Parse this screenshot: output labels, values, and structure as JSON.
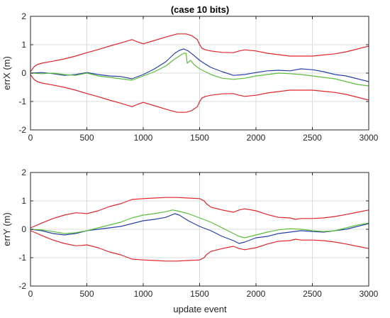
{
  "chart_data": [
    {
      "type": "line",
      "title": "(case 10 bits)",
      "xlabel": "",
      "ylabel": "errX (m)",
      "xlim": [
        0,
        3000
      ],
      "ylim": [
        -2,
        2
      ],
      "xticks": [
        0,
        500,
        1000,
        1500,
        2000,
        2500,
        3000
      ],
      "yticks": [
        -2,
        -1,
        0,
        1,
        2
      ],
      "grid": true,
      "series": [
        {
          "color": "#e0262b",
          "x": [
            0,
            30,
            60,
            100,
            200,
            300,
            400,
            500,
            600,
            700,
            800,
            900,
            950,
            1000,
            1100,
            1200,
            1300,
            1380,
            1430,
            1480,
            1500,
            1520,
            1550,
            1600,
            1700,
            1800,
            1850,
            1900,
            2000,
            2100,
            2200,
            2300,
            2400,
            2500,
            2600,
            2700,
            2800,
            2900,
            3000
          ],
          "values": [
            0.05,
            0.22,
            0.3,
            0.35,
            0.42,
            0.5,
            0.6,
            0.72,
            0.83,
            0.95,
            1.06,
            1.18,
            1.1,
            1.03,
            1.15,
            1.27,
            1.38,
            1.38,
            1.32,
            1.18,
            1.0,
            0.88,
            0.82,
            0.78,
            0.73,
            0.72,
            0.78,
            0.82,
            0.78,
            0.7,
            0.65,
            0.6,
            0.6,
            0.6,
            0.64,
            0.68,
            0.75,
            0.85,
            0.95
          ]
        },
        {
          "color": "#e0262b",
          "x": [
            0,
            30,
            60,
            100,
            200,
            300,
            400,
            500,
            600,
            700,
            800,
            900,
            950,
            1000,
            1100,
            1200,
            1300,
            1380,
            1430,
            1480,
            1500,
            1520,
            1550,
            1600,
            1700,
            1800,
            1850,
            1900,
            2000,
            2100,
            2200,
            2300,
            2400,
            2500,
            2600,
            2700,
            2800,
            2900,
            3000
          ],
          "values": [
            -0.05,
            -0.22,
            -0.3,
            -0.35,
            -0.42,
            -0.5,
            -0.6,
            -0.72,
            -0.83,
            -0.95,
            -1.06,
            -1.18,
            -1.1,
            -1.03,
            -1.15,
            -1.27,
            -1.38,
            -1.38,
            -1.32,
            -1.18,
            -1.0,
            -0.88,
            -0.82,
            -0.78,
            -0.73,
            -0.72,
            -0.78,
            -0.82,
            -0.78,
            -0.7,
            -0.65,
            -0.6,
            -0.6,
            -0.6,
            -0.64,
            -0.68,
            -0.75,
            -0.85,
            -0.95
          ]
        },
        {
          "color": "#2840a8",
          "x": [
            0,
            100,
            200,
            300,
            400,
            500,
            600,
            700,
            800,
            900,
            1000,
            1100,
            1200,
            1280,
            1320,
            1360,
            1400,
            1450,
            1500,
            1550,
            1600,
            1700,
            1800,
            1900,
            2000,
            2100,
            2200,
            2300,
            2400,
            2500,
            2600,
            2700,
            2800,
            2900,
            3000
          ],
          "values": [
            0.0,
            0.02,
            -0.02,
            -0.08,
            -0.05,
            0.02,
            -0.05,
            -0.1,
            -0.12,
            -0.2,
            -0.05,
            0.15,
            0.4,
            0.7,
            0.8,
            0.85,
            0.78,
            0.62,
            0.45,
            0.32,
            0.2,
            0.05,
            -0.08,
            -0.05,
            0.02,
            0.08,
            0.1,
            0.08,
            0.15,
            0.12,
            0.05,
            -0.05,
            -0.1,
            -0.2,
            -0.3
          ]
        },
        {
          "color": "#5cbe3c",
          "x": [
            0,
            100,
            200,
            300,
            400,
            500,
            600,
            700,
            800,
            900,
            1000,
            1100,
            1200,
            1280,
            1320,
            1360,
            1380,
            1390,
            1420,
            1450,
            1500,
            1550,
            1600,
            1700,
            1800,
            1900,
            2000,
            2100,
            2200,
            2300,
            2400,
            2500,
            2600,
            2700,
            2800,
            2900,
            3000
          ],
          "values": [
            0.0,
            -0.02,
            0.0,
            -0.05,
            -0.08,
            0.0,
            -0.1,
            -0.15,
            -0.2,
            -0.25,
            -0.1,
            0.05,
            0.25,
            0.5,
            0.6,
            0.7,
            0.7,
            0.35,
            0.45,
            0.3,
            0.15,
            0.05,
            -0.05,
            -0.18,
            -0.22,
            -0.18,
            -0.1,
            -0.05,
            0.0,
            -0.02,
            -0.05,
            -0.1,
            -0.15,
            -0.2,
            -0.3,
            -0.4,
            -0.45
          ]
        }
      ]
    },
    {
      "type": "line",
      "title": "",
      "xlabel": "update event",
      "ylabel": "errY (m)",
      "xlim": [
        0,
        3000
      ],
      "ylim": [
        -2,
        2
      ],
      "xticks": [
        0,
        500,
        1000,
        1500,
        2000,
        2500,
        3000
      ],
      "yticks": [
        -2,
        -1,
        0,
        1,
        2
      ],
      "grid": true,
      "series": [
        {
          "color": "#e0262b",
          "x": [
            0,
            30,
            60,
            100,
            200,
            300,
            400,
            450,
            500,
            600,
            700,
            800,
            900,
            1000,
            1100,
            1200,
            1300,
            1400,
            1500,
            1540,
            1560,
            1600,
            1700,
            1800,
            1850,
            1900,
            2000,
            2100,
            2200,
            2300,
            2350,
            2400,
            2500,
            2600,
            2700,
            2800,
            2900,
            3000
          ],
          "values": [
            0.05,
            0.1,
            0.15,
            0.22,
            0.38,
            0.5,
            0.58,
            0.57,
            0.55,
            0.65,
            0.8,
            0.9,
            1.05,
            1.08,
            1.1,
            1.12,
            1.12,
            1.1,
            1.08,
            1.0,
            0.9,
            0.78,
            0.68,
            0.6,
            0.68,
            0.72,
            0.65,
            0.52,
            0.42,
            0.4,
            0.35,
            0.38,
            0.38,
            0.4,
            0.45,
            0.52,
            0.6,
            0.68
          ]
        },
        {
          "color": "#e0262b",
          "x": [
            0,
            30,
            60,
            100,
            200,
            300,
            400,
            450,
            500,
            600,
            700,
            800,
            900,
            1000,
            1100,
            1200,
            1300,
            1400,
            1500,
            1540,
            1560,
            1600,
            1700,
            1800,
            1850,
            1900,
            2000,
            2100,
            2200,
            2300,
            2350,
            2400,
            2500,
            2600,
            2700,
            2800,
            2900,
            3000
          ],
          "values": [
            -0.05,
            -0.1,
            -0.15,
            -0.22,
            -0.38,
            -0.5,
            -0.58,
            -0.57,
            -0.55,
            -0.65,
            -0.8,
            -0.9,
            -1.05,
            -1.08,
            -1.1,
            -1.12,
            -1.12,
            -1.1,
            -1.08,
            -1.0,
            -0.9,
            -0.78,
            -0.68,
            -0.6,
            -0.68,
            -0.72,
            -0.65,
            -0.52,
            -0.42,
            -0.4,
            -0.35,
            -0.38,
            -0.38,
            -0.4,
            -0.45,
            -0.52,
            -0.6,
            -0.68
          ]
        },
        {
          "color": "#2840a8",
          "x": [
            0,
            100,
            200,
            300,
            400,
            500,
            600,
            700,
            800,
            900,
            1000,
            1100,
            1200,
            1280,
            1320,
            1400,
            1500,
            1600,
            1700,
            1800,
            1850,
            1900,
            2000,
            2100,
            2200,
            2300,
            2400,
            2500,
            2600,
            2700,
            2800,
            2900,
            3000
          ],
          "values": [
            0.0,
            -0.05,
            -0.15,
            -0.2,
            -0.15,
            -0.05,
            0.0,
            0.05,
            0.1,
            0.2,
            0.3,
            0.35,
            0.42,
            0.55,
            0.5,
            0.3,
            0.1,
            -0.05,
            -0.25,
            -0.4,
            -0.5,
            -0.45,
            -0.3,
            -0.25,
            -0.15,
            -0.1,
            -0.05,
            -0.08,
            -0.1,
            -0.05,
            0.0,
            0.1,
            0.2
          ]
        },
        {
          "color": "#5cbe3c",
          "x": [
            0,
            100,
            200,
            300,
            400,
            500,
            600,
            700,
            800,
            900,
            1000,
            1100,
            1200,
            1260,
            1300,
            1400,
            1500,
            1600,
            1700,
            1800,
            1850,
            1900,
            2000,
            2100,
            2200,
            2300,
            2400,
            2500,
            2600,
            2700,
            2800,
            2900,
            3000
          ],
          "values": [
            0.0,
            -0.02,
            -0.08,
            -0.15,
            -0.12,
            -0.05,
            0.05,
            0.15,
            0.25,
            0.4,
            0.5,
            0.55,
            0.62,
            0.68,
            0.65,
            0.55,
            0.4,
            0.25,
            0.05,
            -0.15,
            -0.25,
            -0.3,
            -0.2,
            -0.1,
            -0.02,
            0.02,
            0.0,
            -0.05,
            -0.08,
            -0.05,
            0.05,
            0.15,
            0.22
          ]
        }
      ]
    }
  ]
}
